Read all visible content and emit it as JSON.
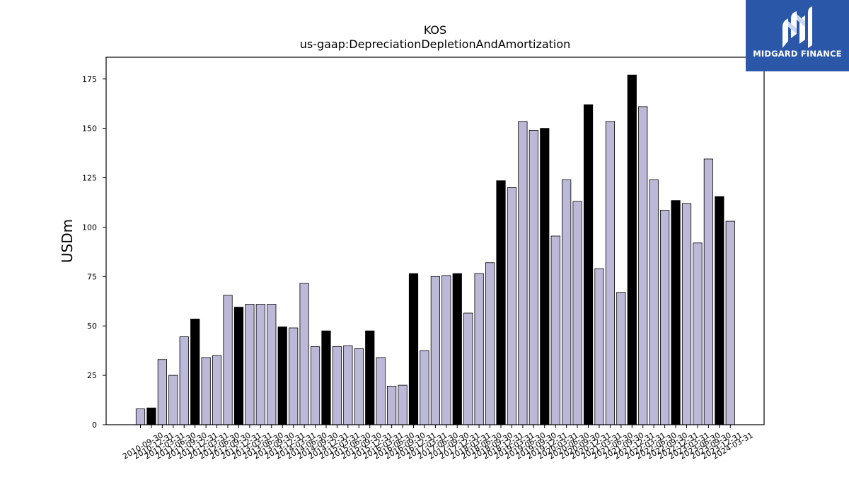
{
  "logo": {
    "text": "MIDGARD FINANCE",
    "mark_icon": "midgard-m-icon",
    "background": "#2b57a8"
  },
  "chart_data": {
    "type": "bar",
    "title": "KOS",
    "subtitle": "us-gaap:DepreciationDepletionAndAmortization",
    "xlabel": "",
    "ylabel": "USDm",
    "ylim": [
      0,
      186
    ],
    "yticks": [
      0,
      25,
      50,
      75,
      100,
      125,
      150,
      175
    ],
    "grid": false,
    "colors": {
      "quarterly": "#bcb9d8",
      "annual": "#000000"
    },
    "categories": [
      "2010-09-30",
      "2010-12-31",
      "2011-03-31",
      "2011-06-30",
      "2011-09-30",
      "2011-12-31",
      "2012-03-31",
      "2012-06-30",
      "2012-09-30",
      "2012-12-31",
      "2013-03-31",
      "2013-06-30",
      "2013-09-30",
      "2013-12-31",
      "2014-03-31",
      "2014-06-30",
      "2014-09-30",
      "2014-12-31",
      "2015-03-31",
      "2015-06-30",
      "2015-09-30",
      "2015-12-31",
      "2016-03-31",
      "2016-06-30",
      "2016-09-30",
      "2016-12-31",
      "2017-03-31",
      "2017-06-30",
      "2017-09-30",
      "2017-12-31",
      "2018-03-31",
      "2018-06-30",
      "2018-09-30",
      "2018-12-31",
      "2019-03-31",
      "2019-06-30",
      "2019-09-30",
      "2019-12-31",
      "2020-03-31",
      "2020-06-30",
      "2020-09-30",
      "2020-12-31",
      "2021-03-31",
      "2021-06-30",
      "2021-09-30",
      "2021-12-31",
      "2022-03-31",
      "2022-06-30",
      "2022-09-30",
      "2022-12-31",
      "2023-03-31",
      "2023-06-30",
      "2023-09-30",
      "2023-12-31",
      "2024-03-31"
    ],
    "values": [
      8,
      8.5,
      33,
      25,
      44.5,
      53.5,
      34,
      35,
      65.5,
      59.5,
      61,
      61,
      61,
      49.5,
      49,
      71.5,
      39.5,
      47.5,
      39.5,
      40,
      38.5,
      47.5,
      34,
      19.5,
      20,
      76.5,
      37.5,
      75,
      75.5,
      76.5,
      56.5,
      76.5,
      82,
      123.5,
      120,
      153.5,
      149,
      150,
      95.5,
      124,
      113,
      162,
      79,
      153.5,
      67,
      177,
      161,
      124,
      108.5,
      113.5,
      112,
      92,
      134.5,
      115.5,
      103
    ],
    "annual": [
      false,
      true,
      false,
      false,
      false,
      true,
      false,
      false,
      false,
      true,
      false,
      false,
      false,
      true,
      false,
      false,
      false,
      true,
      false,
      false,
      false,
      true,
      false,
      false,
      false,
      true,
      false,
      false,
      false,
      true,
      false,
      false,
      false,
      true,
      false,
      false,
      false,
      true,
      false,
      false,
      false,
      true,
      false,
      false,
      false,
      true,
      false,
      false,
      false,
      true,
      false,
      false,
      false,
      true,
      false
    ]
  }
}
